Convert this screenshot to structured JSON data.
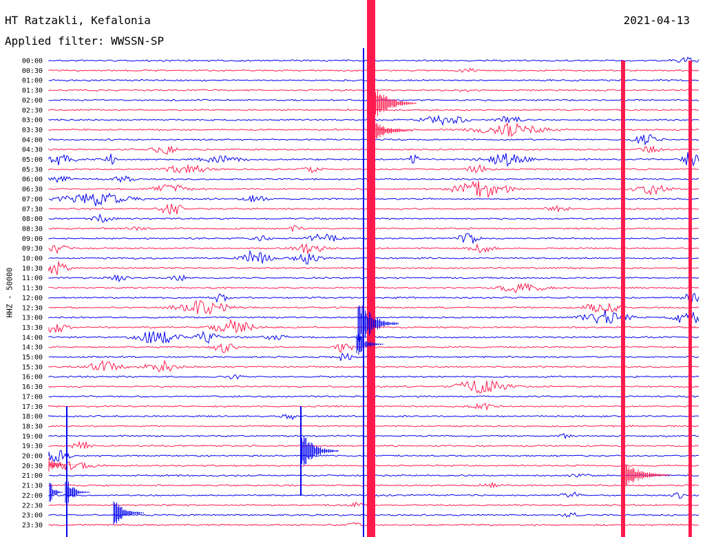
{
  "header": {
    "title": "HT Ratzakli, Kefalonia",
    "filter": "Applied filter: WWSSN-SP",
    "date": "2021-04-13"
  },
  "colors": {
    "odd": "#0000ee",
    "even": "#ff1a4d",
    "background": "#ffffff"
  },
  "chart_data": {
    "type": "line",
    "title": "HT Ratzakli, Kefalonia",
    "subtitle": "Applied filter: WWSSN-SP",
    "ylabel": "HHZ - 50000",
    "xlabel": "",
    "row_labels": [
      "00:00",
      "00:30",
      "01:00",
      "01:30",
      "02:00",
      "02:30",
      "03:00",
      "03:30",
      "04:00",
      "04:30",
      "05:00",
      "05:30",
      "06:00",
      "06:30",
      "07:00",
      "07:30",
      "08:00",
      "08:30",
      "09:00",
      "09:30",
      "10:00",
      "10:30",
      "11:00",
      "11:30",
      "12:00",
      "12:30",
      "13:00",
      "13:30",
      "14:00",
      "14:30",
      "15:00",
      "15:30",
      "16:00",
      "16:30",
      "17:00",
      "17:30",
      "18:00",
      "18:30",
      "19:00",
      "19:30",
      "20:00",
      "20:30",
      "21:00",
      "21:30",
      "22:00",
      "22:30",
      "23:00",
      "23:30"
    ],
    "trace_colors": [
      "#0000ee",
      "#ff1a4d"
    ],
    "grid": false,
    "legend": "none"
  }
}
